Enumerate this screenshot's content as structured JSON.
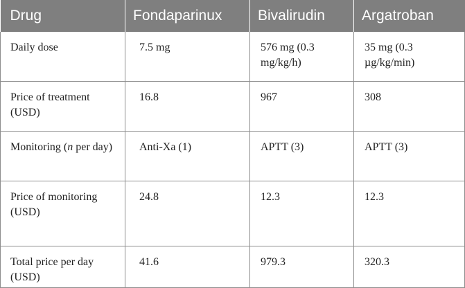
{
  "table": {
    "headers": [
      "Drug",
      "Fondaparinux",
      "Bivalirudin",
      "Argatroban"
    ],
    "rows": [
      [
        "Daily dose",
        "7.5 mg",
        "576 mg (0.3 mg/kg/h)",
        "35 mg (0.3 µg/kg/min)"
      ],
      [
        "Price of treatment (USD)",
        "16.8",
        "967",
        "308"
      ],
      [
        "Monitoring (n per day)",
        "Anti-Xa (1)",
        "APTT (3)",
        "APTT (3)"
      ],
      [
        "Price of monitoring (USD)",
        "24.8",
        "12.3",
        "12.3"
      ],
      [
        "Total price per day (USD)",
        "41.6",
        "979.3",
        "320.3"
      ]
    ]
  },
  "colors": {
    "header_background": "#7f7f7f",
    "header_text": "#ffffff",
    "grid_lines": "#8c8c8c"
  }
}
